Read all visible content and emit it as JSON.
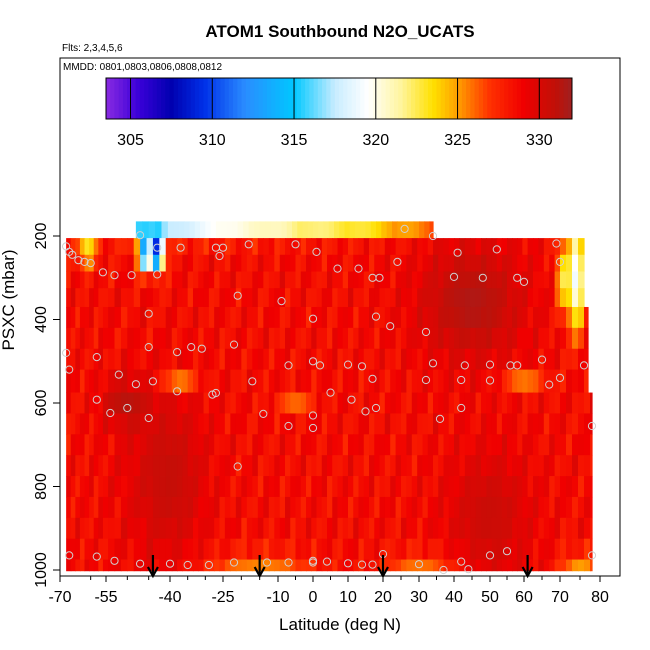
{
  "chart_data": {
    "type": "heatmap",
    "title": "ATOM1 Southbound N2O_UCATS",
    "flights_note": "Flts: 2,3,4,5,6",
    "dates_note": "MMDD: 0801,0803,0806,0808,0812",
    "xlabel": "Latitude (deg N)",
    "ylabel": "PSXC (mbar)",
    "xlim": [
      -70,
      80
    ],
    "ylim": [
      1000,
      100
    ],
    "x_ticks": [
      -70,
      -55,
      -40,
      -25,
      -10,
      0,
      10,
      20,
      30,
      40,
      50,
      60,
      70,
      80
    ],
    "x_tick_labels": [
      "-70",
      "-55",
      "-40",
      "-25",
      "-10",
      "0",
      "10",
      "20",
      "30",
      "40",
      "50",
      "60",
      "70",
      "80"
    ],
    "x_minor_ticks": [
      -60,
      -50,
      -45,
      -35,
      -30,
      -20,
      -15,
      -5,
      5,
      15,
      25,
      35,
      45,
      55,
      65,
      75
    ],
    "y_ticks": [
      200,
      400,
      600,
      800,
      1000
    ],
    "y_tick_labels": [
      "200",
      "400",
      "600",
      "800",
      "1000"
    ],
    "colorbar": {
      "range": [
        303.5,
        332
      ],
      "ticks": [
        305,
        310,
        315,
        320,
        325,
        330
      ],
      "tick_labels": [
        "305",
        "310",
        "315",
        "320",
        "325",
        "330"
      ],
      "stops": [
        {
          "v": 303.5,
          "color": "#8a2be2"
        },
        {
          "v": 305.5,
          "color": "#3a00d8"
        },
        {
          "v": 307.5,
          "color": "#0000b0"
        },
        {
          "v": 309.5,
          "color": "#0030e8"
        },
        {
          "v": 312,
          "color": "#2a8cff"
        },
        {
          "v": 315,
          "color": "#00c8ff"
        },
        {
          "v": 317.5,
          "color": "#c8ecff"
        },
        {
          "v": 319.5,
          "color": "#ffffff"
        },
        {
          "v": 321.5,
          "color": "#fff5a0"
        },
        {
          "v": 323.5,
          "color": "#ffe000"
        },
        {
          "v": 325,
          "color": "#ffa000"
        },
        {
          "v": 327,
          "color": "#ff3000"
        },
        {
          "v": 329,
          "color": "#f00000"
        },
        {
          "v": 331,
          "color": "#c01008"
        },
        {
          "v": 332,
          "color": "#a02020"
        }
      ]
    },
    "pressure_bands": [
      {
        "p_top": 165,
        "p_bottom": 205,
        "x_start": -48,
        "x_end": 34
      },
      {
        "p_top": 205,
        "p_bottom": 245,
        "x_start": -68,
        "x_end": 76
      },
      {
        "p_top": 245,
        "p_bottom": 285,
        "x_start": -68,
        "x_end": 76
      },
      {
        "p_top": 285,
        "p_bottom": 325,
        "x_start": -68,
        "x_end": 76
      },
      {
        "p_top": 325,
        "p_bottom": 370,
        "x_start": -68,
        "x_end": 76
      },
      {
        "p_top": 370,
        "p_bottom": 420,
        "x_start": -68,
        "x_end": 77
      },
      {
        "p_top": 420,
        "p_bottom": 470,
        "x_start": -68,
        "x_end": 77
      },
      {
        "p_top": 470,
        "p_bottom": 520,
        "x_start": -68,
        "x_end": 77
      },
      {
        "p_top": 520,
        "p_bottom": 575,
        "x_start": -68,
        "x_end": 77
      },
      {
        "p_top": 575,
        "p_bottom": 625,
        "x_start": -68,
        "x_end": 78
      },
      {
        "p_top": 625,
        "p_bottom": 675,
        "x_start": -68,
        "x_end": 78
      },
      {
        "p_top": 675,
        "p_bottom": 725,
        "x_start": -68,
        "x_end": 78
      },
      {
        "p_top": 725,
        "p_bottom": 775,
        "x_start": -68,
        "x_end": 78
      },
      {
        "p_top": 775,
        "p_bottom": 825,
        "x_start": -68,
        "x_end": 78
      },
      {
        "p_top": 825,
        "p_bottom": 875,
        "x_start": -68,
        "x_end": 78
      },
      {
        "p_top": 875,
        "p_bottom": 925,
        "x_start": -68,
        "x_end": 78
      },
      {
        "p_top": 925,
        "p_bottom": 975,
        "x_start": -68,
        "x_end": 78
      },
      {
        "p_top": 975,
        "p_bottom": 1002,
        "x_start": -68,
        "x_end": 78
      }
    ],
    "field_features": [
      {
        "lat": -48,
        "p": 180,
        "value": 314.5,
        "lat_width": 14,
        "p_width": 25
      },
      {
        "lat": -35,
        "p": 180,
        "value": 317,
        "lat_width": 14,
        "p_width": 25
      },
      {
        "lat": -22,
        "p": 180,
        "value": 319.5,
        "lat_width": 12,
        "p_width": 25
      },
      {
        "lat": -10,
        "p": 180,
        "value": 320.5,
        "lat_width": 10,
        "p_width": 25
      },
      {
        "lat": 3,
        "p": 180,
        "value": 321.5,
        "lat_width": 10,
        "p_width": 25
      },
      {
        "lat": 15,
        "p": 180,
        "value": 322.5,
        "lat_width": 10,
        "p_width": 25
      },
      {
        "lat": 28,
        "p": 180,
        "value": 324.5,
        "lat_width": 8,
        "p_width": 25
      },
      {
        "lat": -43,
        "p": 240,
        "value": 306,
        "lat_width": 1.5,
        "p_width": 40
      },
      {
        "lat": -46,
        "p": 240,
        "value": 311,
        "lat_width": 1.5,
        "p_width": 40
      },
      {
        "lat": -61,
        "p": 230,
        "value": 323,
        "lat_width": 3,
        "p_width": 45
      },
      {
        "lat": 74,
        "p": 300,
        "value": 318,
        "lat_width": 2,
        "p_width": 120
      },
      {
        "lat": 71,
        "p": 300,
        "value": 322,
        "lat_width": 2,
        "p_width": 80
      },
      {
        "lat": 45,
        "p": 360,
        "value": 331.5,
        "lat_width": 15,
        "p_width": 140
      },
      {
        "lat": -50,
        "p": 600,
        "value": 331.3,
        "lat_width": 6,
        "p_width": 60
      },
      {
        "lat": -40,
        "p": 780,
        "value": 330.8,
        "lat_width": 10,
        "p_width": 200
      },
      {
        "lat": 50,
        "p": 870,
        "value": 330.6,
        "lat_width": 12,
        "p_width": 160
      },
      {
        "lat": -37,
        "p": 548,
        "value": 325.8,
        "lat_width": 5,
        "p_width": 25
      },
      {
        "lat": -5,
        "p": 598,
        "value": 326,
        "lat_width": 5,
        "p_width": 25
      },
      {
        "lat": 60,
        "p": 548,
        "value": 325.8,
        "lat_width": 6,
        "p_width": 25
      },
      {
        "lat": -15,
        "p": 985,
        "value": 325.5,
        "lat_width": 15,
        "p_width": 30
      },
      {
        "lat": 30,
        "p": 985,
        "value": 325.8,
        "lat_width": 10,
        "p_width": 30
      },
      {
        "lat": 75,
        "p": 985,
        "value": 325,
        "lat_width": 5,
        "p_width": 30
      }
    ],
    "sample_points": [
      {
        "lat": -47,
        "p": 198
      },
      {
        "lat": -43,
        "p": 228
      },
      {
        "lat": -37,
        "p": 228
      },
      {
        "lat": -27,
        "p": 228
      },
      {
        "lat": -25,
        "p": 228
      },
      {
        "lat": -18,
        "p": 220
      },
      {
        "lat": -5,
        "p": 220
      },
      {
        "lat": 1,
        "p": 238
      },
      {
        "lat": 26,
        "p": 183
      },
      {
        "lat": 34,
        "p": 200
      },
      {
        "lat": 41,
        "p": 240
      },
      {
        "lat": 52,
        "p": 232
      },
      {
        "lat": 69,
        "p": 218
      },
      {
        "lat": -68,
        "p": 225
      },
      {
        "lat": -67,
        "p": 238
      },
      {
        "lat": -66,
        "p": 245
      },
      {
        "lat": -64,
        "p": 258
      },
      {
        "lat": -62,
        "p": 262
      },
      {
        "lat": -60,
        "p": 265
      },
      {
        "lat": -56,
        "p": 287
      },
      {
        "lat": -53,
        "p": 294
      },
      {
        "lat": -49,
        "p": 294
      },
      {
        "lat": -43,
        "p": 292
      },
      {
        "lat": -26,
        "p": 248
      },
      {
        "lat": 7,
        "p": 278
      },
      {
        "lat": 13,
        "p": 278
      },
      {
        "lat": 17,
        "p": 300
      },
      {
        "lat": 19,
        "p": 300
      },
      {
        "lat": 24,
        "p": 262
      },
      {
        "lat": 40,
        "p": 298
      },
      {
        "lat": 48,
        "p": 300
      },
      {
        "lat": 58,
        "p": 300
      },
      {
        "lat": 60,
        "p": 310
      },
      {
        "lat": 70,
        "p": 262
      },
      {
        "lat": -21,
        "p": 343
      },
      {
        "lat": -9,
        "p": 356
      },
      {
        "lat": 0,
        "p": 398
      },
      {
        "lat": 18,
        "p": 393
      },
      {
        "lat": 22,
        "p": 416
      },
      {
        "lat": 32,
        "p": 430
      },
      {
        "lat": -45,
        "p": 386
      },
      {
        "lat": -45,
        "p": 466
      },
      {
        "lat": -34,
        "p": 466
      },
      {
        "lat": -31,
        "p": 470
      },
      {
        "lat": -22,
        "p": 460
      },
      {
        "lat": -38,
        "p": 478
      },
      {
        "lat": -68,
        "p": 480
      },
      {
        "lat": -58,
        "p": 490
      },
      {
        "lat": -67,
        "p": 520
      },
      {
        "lat": -52,
        "p": 532
      },
      {
        "lat": -48,
        "p": 555
      },
      {
        "lat": -44,
        "p": 548
      },
      {
        "lat": -17,
        "p": 548
      },
      {
        "lat": -7,
        "p": 510
      },
      {
        "lat": 0,
        "p": 500
      },
      {
        "lat": 2,
        "p": 510
      },
      {
        "lat": 10,
        "p": 508
      },
      {
        "lat": 14,
        "p": 512
      },
      {
        "lat": 17,
        "p": 542
      },
      {
        "lat": 34,
        "p": 505
      },
      {
        "lat": 43,
        "p": 510
      },
      {
        "lat": 50,
        "p": 508
      },
      {
        "lat": 56,
        "p": 510
      },
      {
        "lat": 58,
        "p": 510
      },
      {
        "lat": 65,
        "p": 496
      },
      {
        "lat": 67,
        "p": 556
      },
      {
        "lat": 70,
        "p": 540
      },
      {
        "lat": 76,
        "p": 510
      },
      {
        "lat": 32,
        "p": 545
      },
      {
        "lat": 42,
        "p": 545
      },
      {
        "lat": 50,
        "p": 546
      },
      {
        "lat": -58,
        "p": 592
      },
      {
        "lat": -54,
        "p": 624
      },
      {
        "lat": -50,
        "p": 612
      },
      {
        "lat": -45,
        "p": 636
      },
      {
        "lat": -38,
        "p": 572
      },
      {
        "lat": -28,
        "p": 580
      },
      {
        "lat": -27,
        "p": 576
      },
      {
        "lat": -14,
        "p": 626
      },
      {
        "lat": -7,
        "p": 655
      },
      {
        "lat": 0,
        "p": 630
      },
      {
        "lat": 0,
        "p": 660
      },
      {
        "lat": 5,
        "p": 575
      },
      {
        "lat": 11,
        "p": 592
      },
      {
        "lat": 15,
        "p": 620
      },
      {
        "lat": 18,
        "p": 612
      },
      {
        "lat": 36,
        "p": 638
      },
      {
        "lat": 42,
        "p": 612
      },
      {
        "lat": 78,
        "p": 655
      },
      {
        "lat": -21,
        "p": 752
      },
      {
        "lat": -67,
        "p": 965
      },
      {
        "lat": -58,
        "p": 968
      },
      {
        "lat": -53,
        "p": 978
      },
      {
        "lat": -47,
        "p": 985
      },
      {
        "lat": -40,
        "p": 985
      },
      {
        "lat": -35,
        "p": 988
      },
      {
        "lat": -29,
        "p": 988
      },
      {
        "lat": -22,
        "p": 982
      },
      {
        "lat": -13,
        "p": 982
      },
      {
        "lat": -7,
        "p": 982
      },
      {
        "lat": 0,
        "p": 978
      },
      {
        "lat": 0,
        "p": 982
      },
      {
        "lat": 4,
        "p": 980
      },
      {
        "lat": 10,
        "p": 984
      },
      {
        "lat": 14,
        "p": 987
      },
      {
        "lat": 17,
        "p": 987
      },
      {
        "lat": 20,
        "p": 962
      },
      {
        "lat": 30,
        "p": 986
      },
      {
        "lat": 37,
        "p": 1000
      },
      {
        "lat": 42,
        "p": 980
      },
      {
        "lat": 44,
        "p": 998
      },
      {
        "lat": 50,
        "p": 965
      },
      {
        "lat": 55,
        "p": 955
      },
      {
        "lat": 78,
        "p": 965
      }
    ],
    "arrows_lat": [
      -44,
      -15,
      20,
      61
    ],
    "marker_color": "#d0d0d0"
  }
}
